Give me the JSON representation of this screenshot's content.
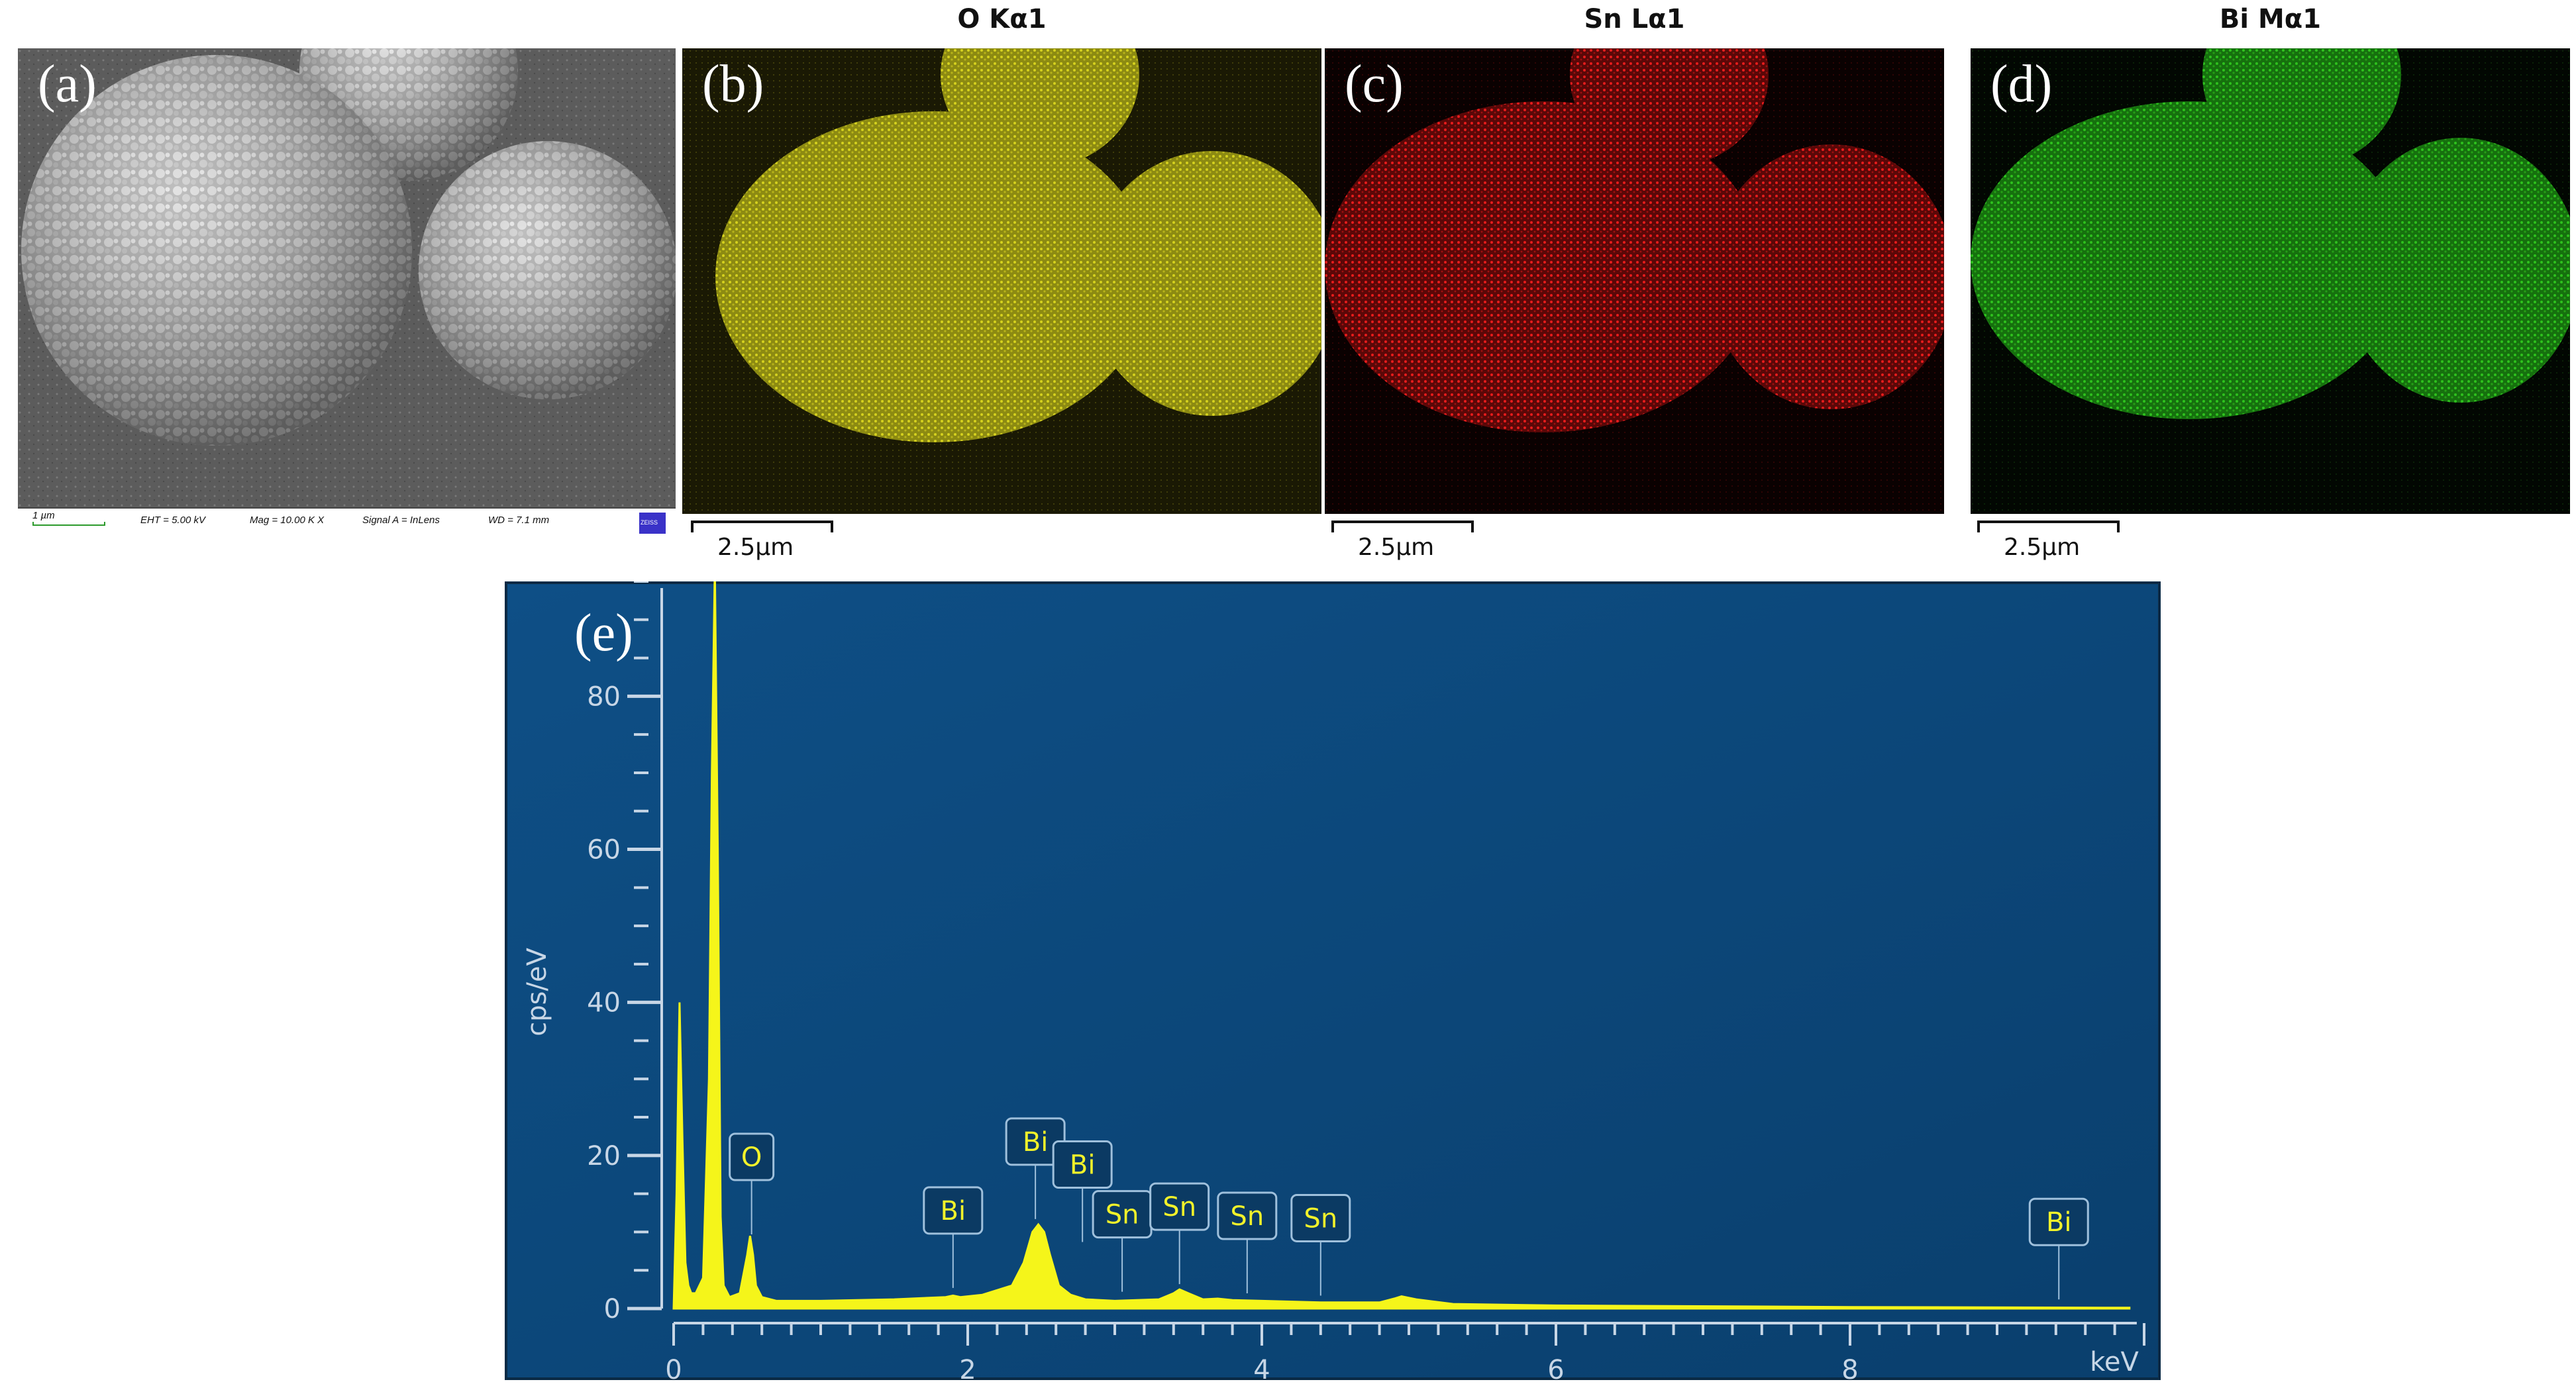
{
  "panels": {
    "a": {
      "letter": "(a)"
    },
    "b": {
      "letter": "(b)",
      "title": "O Kα1",
      "scale_label": "2.5µm",
      "color": "#d6d21e"
    },
    "c": {
      "letter": "(c)",
      "title": "Sn Lα1",
      "scale_label": "2.5µm",
      "color": "#e81c1c"
    },
    "d": {
      "letter": "(d)",
      "title": "Bi Mα1",
      "scale_label": "2.5µm",
      "color": "#2ec21e"
    },
    "e": {
      "letter": "(e)"
    }
  },
  "sem_info": {
    "scale": "1 µm",
    "eht": "EHT = 5.00 kV",
    "mag": "Mag = 10.00 K X",
    "signal": "Signal A = InLens",
    "wd": "WD = 7.1 mm",
    "logo": "ZEISS"
  },
  "chart_data": {
    "type": "line",
    "title": "",
    "xlabel": "keV",
    "ylabel": "cps/eV",
    "xlim": [
      0,
      10
    ],
    "ylim": [
      0,
      95
    ],
    "x_ticks": [
      0,
      2,
      4,
      6,
      8
    ],
    "y_ticks": [
      0,
      20,
      40,
      60,
      80
    ],
    "grid": false,
    "colors": {
      "background": "#0d4d80",
      "spectrum": "#f5f51a",
      "axis": "#c7d6e6"
    },
    "spectrum": {
      "x": [
        0.0,
        0.02,
        0.04,
        0.06,
        0.08,
        0.1,
        0.12,
        0.15,
        0.2,
        0.24,
        0.26,
        0.28,
        0.3,
        0.32,
        0.34,
        0.38,
        0.45,
        0.5,
        0.52,
        0.54,
        0.56,
        0.6,
        0.7,
        1.0,
        1.5,
        1.85,
        1.9,
        1.95,
        2.1,
        2.3,
        2.38,
        2.44,
        2.48,
        2.52,
        2.56,
        2.62,
        2.7,
        2.8,
        3.0,
        3.3,
        3.4,
        3.44,
        3.5,
        3.6,
        3.7,
        3.8,
        4.0,
        4.4,
        4.8,
        4.9,
        4.95,
        5.05,
        5.3,
        6.0,
        8.0,
        9.9
      ],
      "y": [
        0,
        15,
        40,
        22,
        6,
        3,
        2,
        2,
        4,
        30,
        70,
        97,
        60,
        12,
        3,
        1.5,
        2,
        7,
        9.5,
        7,
        3,
        1.5,
        1,
        1,
        1.2,
        1.5,
        1.7,
        1.5,
        1.8,
        3,
        6,
        10,
        11,
        10,
        7,
        3,
        1.8,
        1.2,
        1,
        1.2,
        2,
        2.5,
        2,
        1.2,
        1.3,
        1.1,
        1,
        0.8,
        0.8,
        1.3,
        1.6,
        1.2,
        0.6,
        0.4,
        0.2,
        0.1
      ]
    },
    "peak_labels": [
      {
        "text": "O",
        "x": 0.53,
        "y": 9
      },
      {
        "text": "Bi",
        "x": 1.9,
        "y": 2
      },
      {
        "text": "Bi",
        "x": 2.46,
        "y": 11
      },
      {
        "text": "Bi",
        "x": 2.78,
        "y": 8
      },
      {
        "text": "Sn",
        "x": 3.05,
        "y": 1.5
      },
      {
        "text": "Sn",
        "x": 3.44,
        "y": 2.5
      },
      {
        "text": "Sn",
        "x": 3.9,
        "y": 1.3
      },
      {
        "text": "Sn",
        "x": 4.4,
        "y": 1.0
      },
      {
        "text": "Bi",
        "x": 9.42,
        "y": 0.5
      }
    ]
  }
}
